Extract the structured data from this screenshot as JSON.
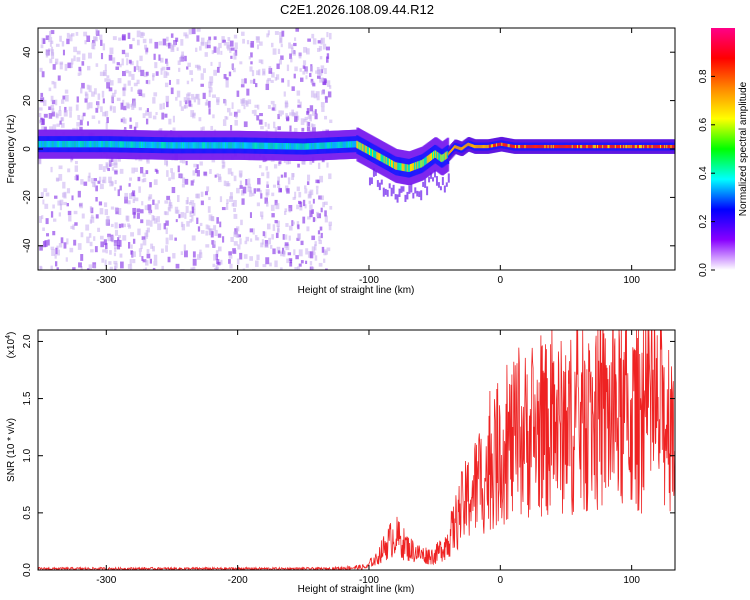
{
  "title": "C2E1.2026.108.09.44.R12",
  "chart_data": [
    {
      "type": "heatmap",
      "xlabel": "Height of straight line (km)",
      "ylabel": "Frequency (Hz)",
      "xlim": [
        -352,
        133
      ],
      "ylim": [
        -50,
        50
      ],
      "x_ticks": [
        -300,
        -200,
        -100,
        0,
        100
      ],
      "x_tick_labels": [
        "-300",
        "-200",
        "-100",
        "0",
        "100"
      ],
      "y_ticks": [
        -40,
        -20,
        0,
        20,
        40
      ],
      "y_tick_labels": [
        "-40",
        "-20",
        "0",
        "20",
        "40"
      ],
      "colorbar": {
        "label": "Normalized spectral amplitude",
        "range": [
          0,
          1
        ],
        "ticks": [
          0,
          0.2,
          0.4,
          0.6,
          0.8
        ],
        "tick_labels": [
          "0.0",
          "0.2",
          "0.4",
          "0.6",
          "0.8"
        ],
        "colors": [
          "#ffffff",
          "#8800ff",
          "#0000ff",
          "#00ffff",
          "#00ff00",
          "#ffff00",
          "#ff8800",
          "#ff0000",
          "#ff0088"
        ]
      },
      "ridge": {
        "x": [
          -352,
          -300,
          -250,
          -200,
          -150,
          -130,
          -110,
          -100,
          -90,
          -80,
          -70,
          -60,
          -55,
          -50,
          -45,
          -40,
          -35,
          -30,
          -25,
          -20,
          -10,
          0,
          10,
          20,
          50,
          80,
          100,
          133
        ],
        "y": [
          2,
          2,
          1.5,
          1.5,
          1,
          1.5,
          2,
          -1,
          -4,
          -7,
          -8,
          -6,
          -4,
          -2,
          -4,
          -2,
          1,
          0,
          2,
          1,
          1,
          2,
          1,
          1,
          1,
          1,
          1,
          1
        ]
      },
      "scatter_x_range": [
        -352,
        -130
      ]
    },
    {
      "type": "line",
      "xlabel": "Height of straight line (km)",
      "ylabel": "SNR (10 * v/v)",
      "y_multiplier": "(x10",
      "y_multiplier_exp": "4",
      "xlim": [
        -352,
        133
      ],
      "ylim": [
        0,
        21000
      ],
      "x_ticks": [
        -300,
        -200,
        -100,
        0,
        100
      ],
      "x_tick_labels": [
        "-300",
        "-200",
        "-100",
        "0",
        "100"
      ],
      "y_ticks": [
        0,
        5000,
        10000,
        15000,
        20000
      ],
      "y_tick_labels": [
        "0.0",
        "0.5",
        "1.0",
        "1.5",
        "2.0"
      ],
      "color": "#ee2222",
      "envelope": {
        "x": [
          -352,
          -130,
          -100,
          -95,
          -90,
          -85,
          -80,
          -75,
          -70,
          -60,
          -50,
          -40,
          -30,
          -20,
          -10,
          0,
          20,
          40,
          60,
          80,
          100,
          133
        ],
        "y": [
          250,
          250,
          600,
          900,
          1800,
          2600,
          3200,
          2600,
          2000,
          1400,
          1300,
          2600,
          5500,
          7500,
          9000,
          11000,
          12500,
          13000,
          13500,
          14000,
          13800,
          14000
        ]
      }
    }
  ]
}
